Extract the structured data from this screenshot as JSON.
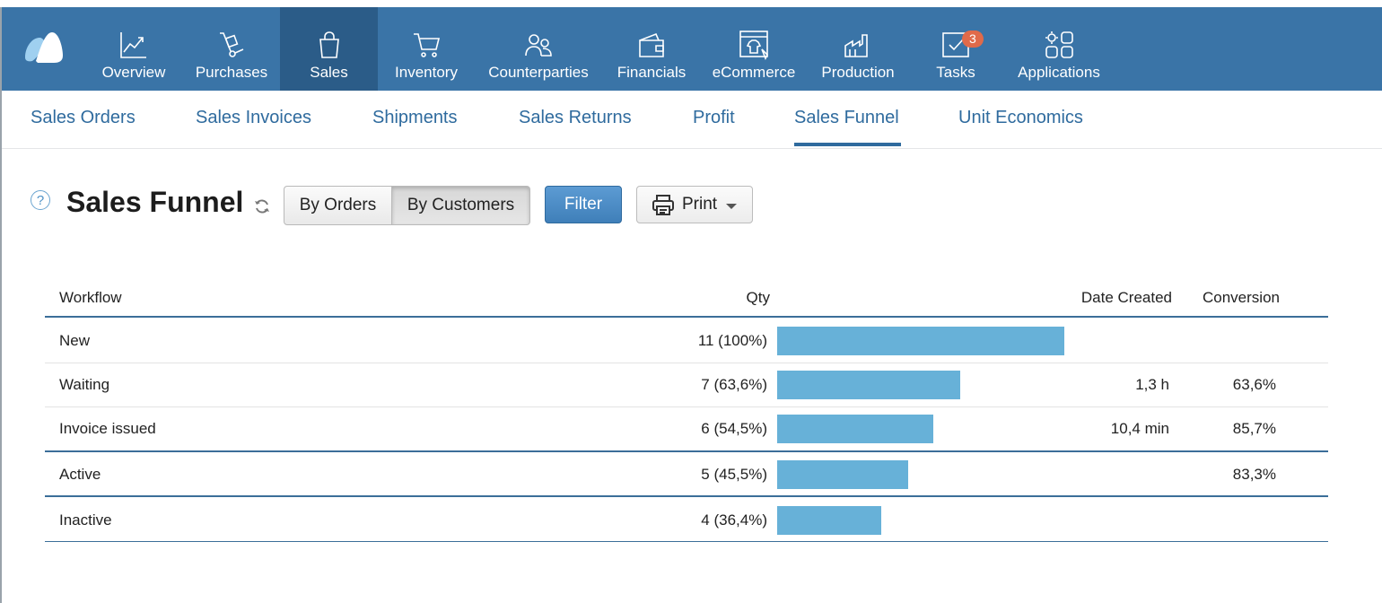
{
  "nav": {
    "items": [
      {
        "label": "Overview",
        "icon": "chart-line-icon"
      },
      {
        "label": "Purchases",
        "icon": "hand-truck-icon"
      },
      {
        "label": "Sales",
        "icon": "shopping-bag-icon"
      },
      {
        "label": "Inventory",
        "icon": "cart-icon"
      },
      {
        "label": "Counterparties",
        "icon": "people-icon"
      },
      {
        "label": "Financials",
        "icon": "wallet-icon"
      },
      {
        "label": "eCommerce",
        "icon": "storefront-icon"
      },
      {
        "label": "Production",
        "icon": "factory-icon"
      },
      {
        "label": "Tasks",
        "icon": "task-check-icon",
        "badge": "3"
      },
      {
        "label": "Applications",
        "icon": "apps-grid-icon"
      }
    ],
    "active": "Sales"
  },
  "subnav": {
    "items": [
      "Sales Orders",
      "Sales Invoices",
      "Shipments",
      "Sales Returns",
      "Profit",
      "Sales Funnel",
      "Unit Economics"
    ],
    "active": "Sales Funnel"
  },
  "toolbar": {
    "title": "Sales Funnel",
    "help": "?",
    "by_orders": "By Orders",
    "by_customers": "By Customers",
    "selected_mode": "By Customers",
    "filter": "Filter",
    "print": "Print"
  },
  "table": {
    "headers": {
      "workflow": "Workflow",
      "qty": "Qty",
      "date_created": "Date Created",
      "conversion": "Conversion"
    },
    "rows": [
      {
        "workflow": "New",
        "qty": "11 (100%)",
        "share": 1.0,
        "date_created": "",
        "conversion": ""
      },
      {
        "workflow": "Waiting",
        "qty": "7 (63,6%)",
        "share": 0.636,
        "date_created": "1,3 h",
        "conversion": "63,6%"
      },
      {
        "workflow": "Invoice issued",
        "qty": "6 (54,5%)",
        "share": 0.545,
        "date_created": "10,4 min",
        "conversion": "85,7%"
      },
      {
        "workflow": "Active",
        "qty": "5 (45,5%)",
        "share": 0.455,
        "date_created": "",
        "conversion": "83,3%"
      },
      {
        "workflow": "Inactive",
        "qty": "4 (36,4%)",
        "share": 0.364,
        "date_created": "",
        "conversion": ""
      }
    ]
  },
  "colors": {
    "topbar": "#3a74a7",
    "active_nav": "#2b5c88",
    "link": "#2f6b9e",
    "bar": "#67b1d8",
    "badge": "#e06a4a"
  }
}
